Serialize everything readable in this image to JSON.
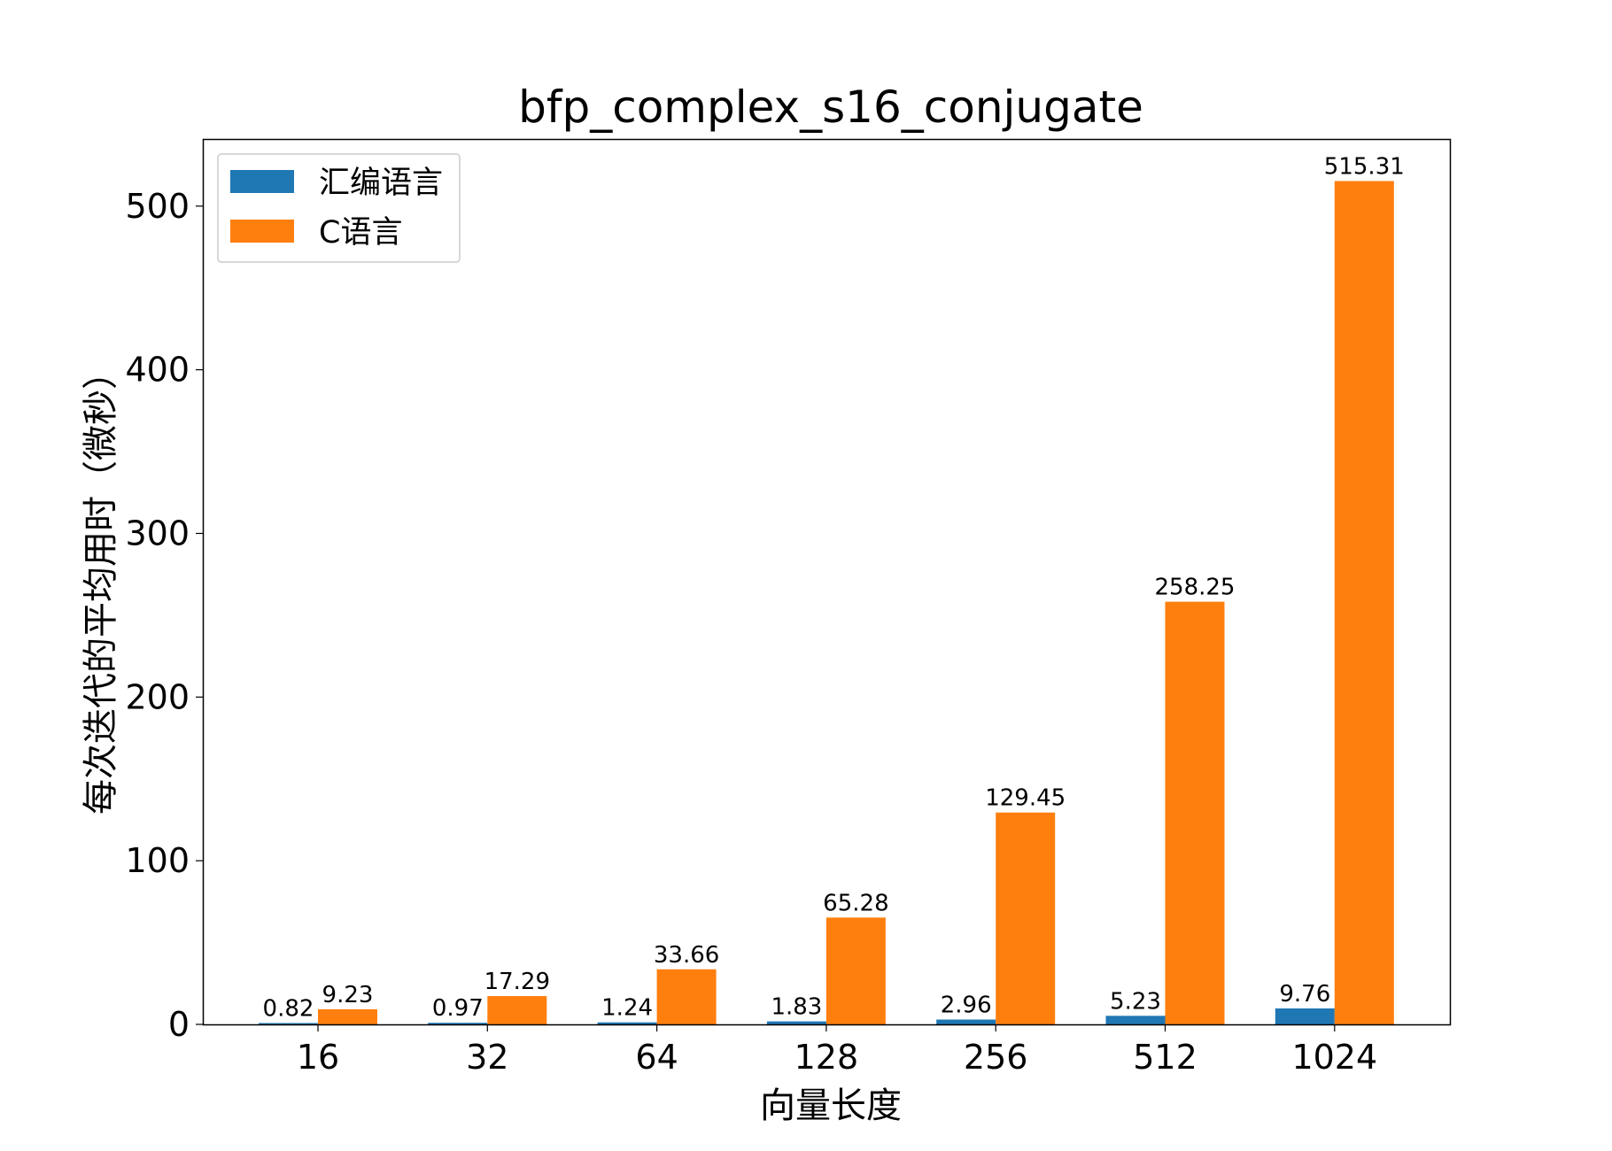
{
  "chart_data": {
    "type": "bar",
    "title": "bfp_complex_s16_conjugate",
    "xlabel": "向量长度",
    "ylabel": "每次迭代的平均用时（微秒）",
    "categories": [
      "16",
      "32",
      "64",
      "128",
      "256",
      "512",
      "1024"
    ],
    "series": [
      {
        "name": "汇编语言",
        "color": "#1f77b4",
        "values": [
          0.82,
          0.97,
          1.24,
          1.83,
          2.96,
          5.23,
          9.76
        ],
        "labels": [
          "0.82",
          "0.97",
          "1.24",
          "1.83",
          "2.96",
          "5.23",
          "9.76"
        ]
      },
      {
        "name": "C语言",
        "color": "#ff7f0e",
        "values": [
          9.23,
          17.29,
          33.66,
          65.28,
          129.45,
          258.25,
          515.31
        ],
        "labels": [
          "9.23",
          "17.29",
          "33.66",
          "65.28",
          "129.45",
          "258.25",
          "515.31"
        ]
      }
    ],
    "yticks": [
      "0",
      "100",
      "200",
      "300",
      "400",
      "500"
    ],
    "ylim": [
      0,
      541
    ],
    "grid": false,
    "legend": "top-left"
  }
}
